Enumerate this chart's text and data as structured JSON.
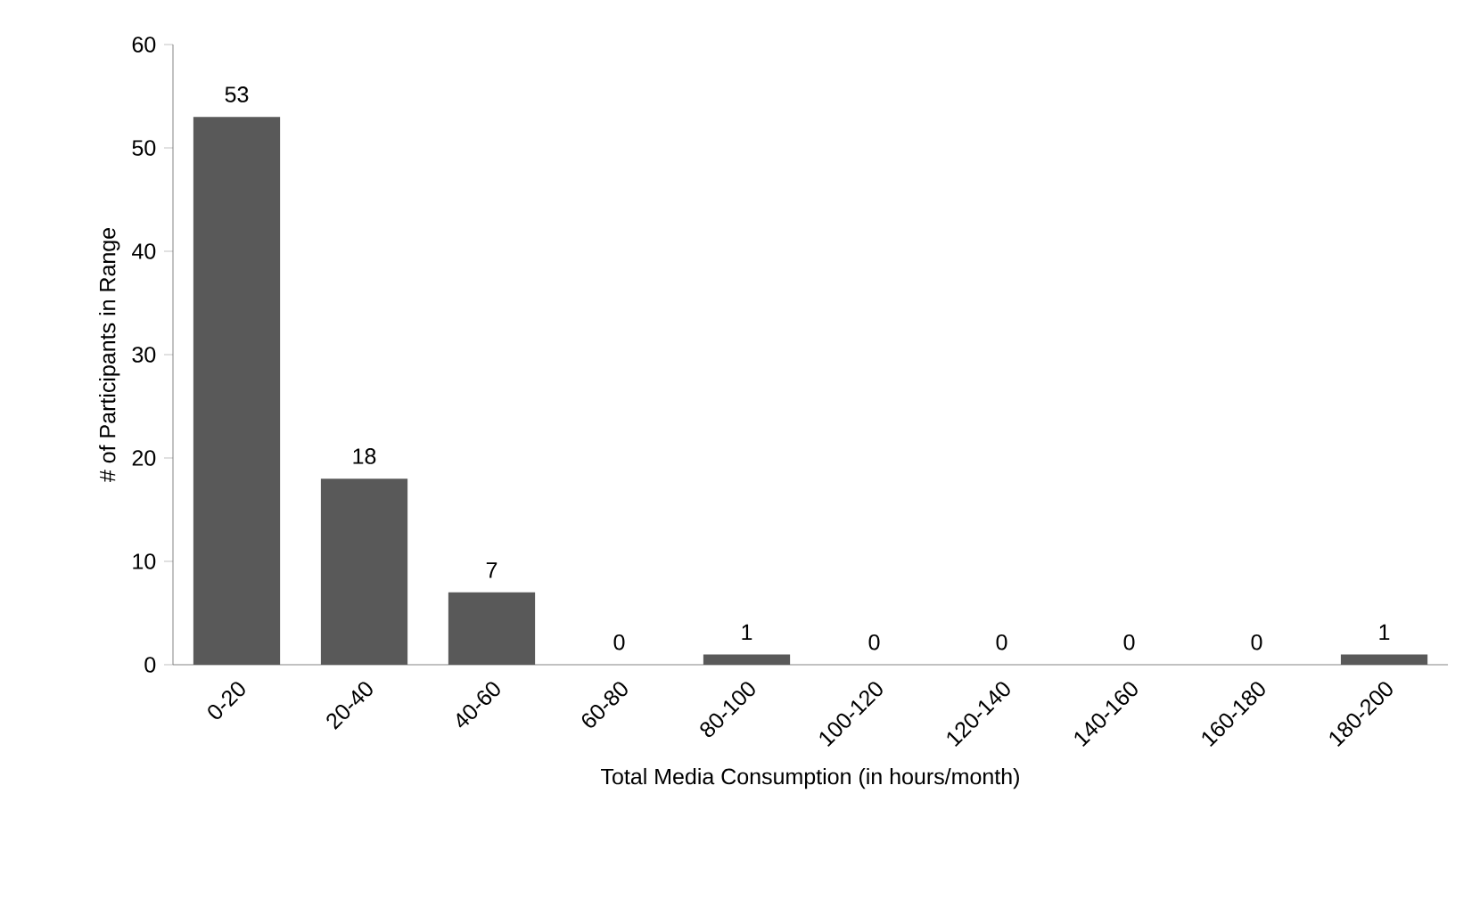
{
  "chart_data": {
    "type": "bar",
    "xlabel": "Total Media Consumption (in hours/month)",
    "ylabel": "# of Participants in Range",
    "categories": [
      "0-20",
      "20-40",
      "40-60",
      "60-80",
      "80-100",
      "100-120",
      "120-140",
      "140-160",
      "160-180",
      "180-200"
    ],
    "values": [
      53,
      18,
      7,
      0,
      1,
      0,
      0,
      0,
      0,
      1
    ],
    "color": "#595959",
    "ylim": [
      0,
      60
    ],
    "yticks": [
      0,
      10,
      20,
      30,
      40,
      50,
      60
    ],
    "data_labels": true
  }
}
